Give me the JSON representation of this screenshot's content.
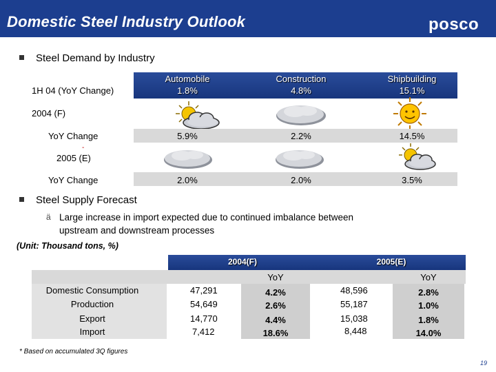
{
  "header": {
    "title": "Domestic Steel Industry Outlook",
    "logo": "posco"
  },
  "demand": {
    "heading": "Steel Demand by Industry",
    "row_h1_label": "1H 04 (YoY Change)",
    "industries": [
      {
        "name": "Automobile",
        "h1": "1.8%",
        "yoy2004": "5.9%",
        "yoy2005": "2.0%",
        "icon2004": "sun-behind-cloud-icon",
        "icon2005": "cloud-icon"
      },
      {
        "name": "Construction",
        "h1": "4.8%",
        "yoy2004": "2.2%",
        "yoy2005": "2.0%",
        "icon2004": "cloud-icon",
        "icon2005": "cloud-icon"
      },
      {
        "name": "Shipbuilding",
        "h1": "15.1%",
        "yoy2004": "14.5%",
        "yoy2005": "3.5%",
        "icon2004": "smiling-sun-icon",
        "icon2005": "sun-behind-cloud-icon"
      }
    ],
    "period_2004": "2004 (F)",
    "yoy_label": "YoY Change",
    "dash": "-",
    "period_2005": "2005 (E)"
  },
  "supply": {
    "heading": "Steel Supply Forecast",
    "sub_bullet": "ä",
    "text_line1": "Large increase in import expected due to continued imbalance between",
    "text_line2": "upstream and downstream processes",
    "unit": "(Unit: Thousand tons, %)",
    "col_2004": "2004(F)",
    "col_2005": "2005(E)",
    "yoy_header": "YoY",
    "rows": [
      {
        "label": "Domestic Consumption",
        "v2004": "47,291",
        "y2004": "4.2%",
        "v2005": "48,596",
        "y2005": "2.8%"
      },
      {
        "label": "Production",
        "v2004": "54,649",
        "y2004": "2.6%",
        "v2005": "55,187",
        "y2005": "1.0%"
      },
      {
        "label": "Export",
        "v2004": "14,770",
        "y2004": "4.4%",
        "v2005": "15,038",
        "y2005": "1.8%"
      },
      {
        "label": "Import",
        "v2004": "7,412",
        "y2004": "18.6%",
        "v2005": "8,448",
        "y2005": "14.0%"
      }
    ]
  },
  "footnote": "* Based on accumulated 3Q figures",
  "page_number": "19",
  "colors": {
    "title_bg": "#1c3e8f",
    "header_band": "#1f418d",
    "gray_band": "#d9d9d9"
  }
}
